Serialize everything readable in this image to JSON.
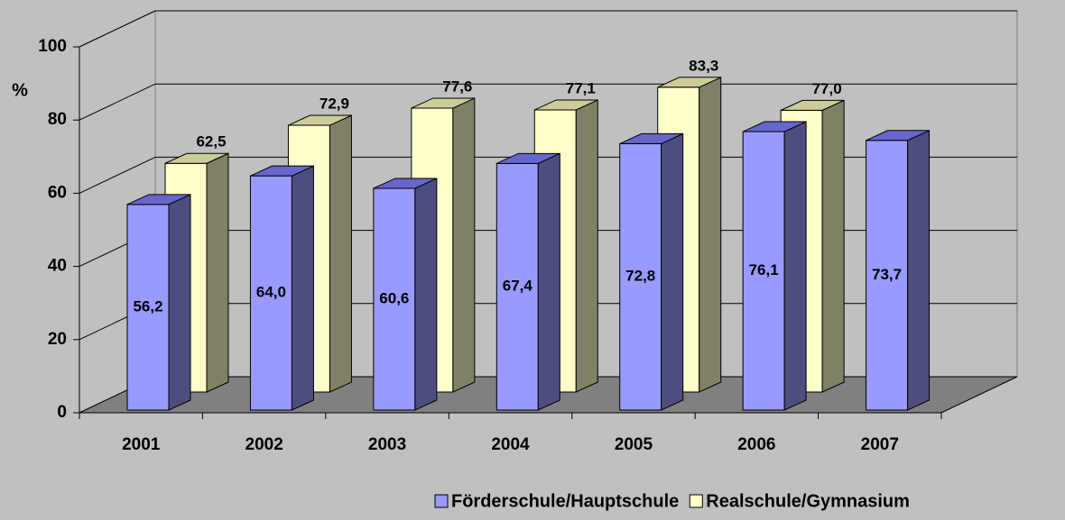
{
  "chart_data": {
    "type": "bar3d",
    "y_label": "%",
    "categories": [
      "2001",
      "2002",
      "2003",
      "2004",
      "2005",
      "2006",
      "2007"
    ],
    "series": [
      {
        "name": "Förderschule/Hauptschule",
        "color": "#9999ff",
        "values": [
          56.2,
          64.0,
          60.6,
          67.4,
          72.8,
          76.1,
          73.7
        ],
        "value_labels": [
          "56,2",
          "64,0",
          "60,6",
          "67,4",
          "72,8",
          "76,1",
          "73,7"
        ]
      },
      {
        "name": "Realschule/Gymnasium",
        "color": "#ffffcc",
        "values": [
          62.5,
          72.9,
          77.6,
          77.1,
          83.3,
          77.0,
          null
        ],
        "value_labels": [
          "62,5",
          "72,9",
          "77,6",
          "77,1",
          "83,3",
          "77,0",
          null
        ]
      }
    ],
    "ylim": [
      0,
      100
    ],
    "yticks": [
      0,
      20,
      40,
      60,
      80,
      100
    ],
    "grid": true,
    "legend": "bottom-right"
  }
}
